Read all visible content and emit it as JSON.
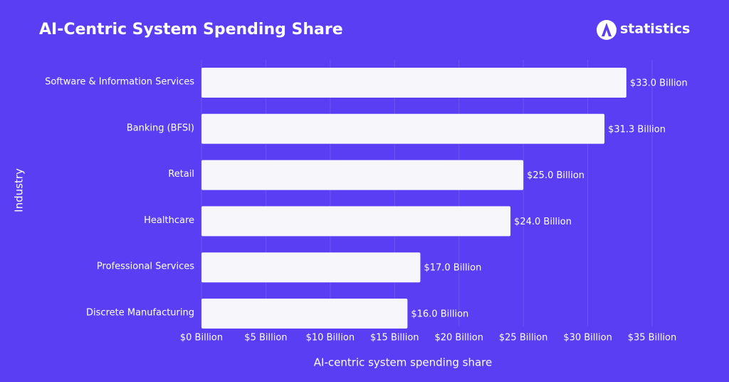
{
  "brand": "statistics",
  "chart_data": {
    "type": "bar",
    "orientation": "horizontal",
    "title": "AI-Centric System Spending Share",
    "x_label": "AI-centric system spending share",
    "y_label": "Industry",
    "categories": [
      "Software & Information Services",
      "Banking (BFSI)",
      "Retail",
      "Healthcare",
      "Professional Services",
      "Discrete Manufacturing"
    ],
    "values": [
      33.0,
      31.3,
      25.0,
      24.0,
      17.0,
      16.0
    ],
    "value_labels": [
      "$33.0 Billion",
      "$31.3 Billion",
      "$25.0 Billion",
      "$24.0 Billion",
      "$17.0 Billion",
      "$16.0 Billion"
    ],
    "color": "#f7f6fb",
    "xlim": [
      0,
      35
    ],
    "xticks": [
      {
        "value": 0,
        "label": "$0 Billion"
      },
      {
        "value": 5,
        "label": "$5 Billion"
      },
      {
        "value": 10,
        "label": "$10 Billion"
      },
      {
        "value": 15,
        "label": "$15 Billion"
      },
      {
        "value": 20,
        "label": "$20 Billion"
      },
      {
        "value": 25,
        "label": "$25 Billion"
      },
      {
        "value": 30,
        "label": "$30 Billion"
      },
      {
        "value": 35,
        "label": "$35 Billion"
      }
    ],
    "grid": true
  }
}
